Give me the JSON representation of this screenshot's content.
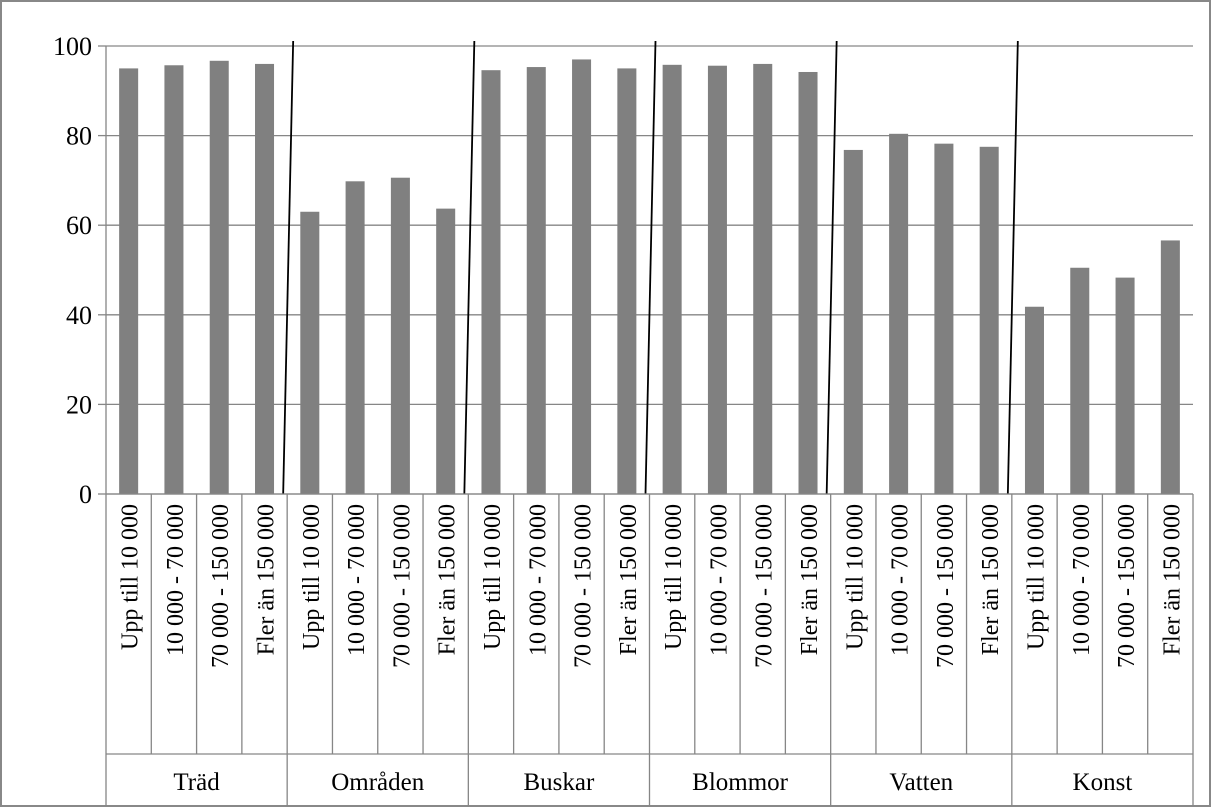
{
  "chart_data": {
    "type": "bar",
    "title": "",
    "xlabel": "",
    "ylabel": "",
    "ylim": [
      0,
      100
    ],
    "yticks": [
      0,
      20,
      40,
      60,
      80,
      100
    ],
    "grid": true,
    "legend": "none",
    "bar_color": "#808080",
    "subcategories": [
      "Upp till 10 000",
      "10 000 - 70 000",
      "70 000 - 150 000",
      "Fler än 150 000"
    ],
    "groups": [
      {
        "label": "Träd",
        "values": [
          95,
          95.7,
          96.7,
          96
        ]
      },
      {
        "label": "Områden",
        "values": [
          63,
          69.8,
          70.6,
          63.7
        ]
      },
      {
        "label": "Buskar",
        "values": [
          94.6,
          95.3,
          97,
          95
        ]
      },
      {
        "label": "Blommor",
        "values": [
          95.8,
          95.6,
          96,
          94.2
        ]
      },
      {
        "label": "Vatten",
        "values": [
          76.8,
          80.4,
          78.2,
          77.5
        ]
      },
      {
        "label": "Konst",
        "values": [
          41.8,
          50.5,
          48.3,
          56.6
        ]
      }
    ]
  }
}
